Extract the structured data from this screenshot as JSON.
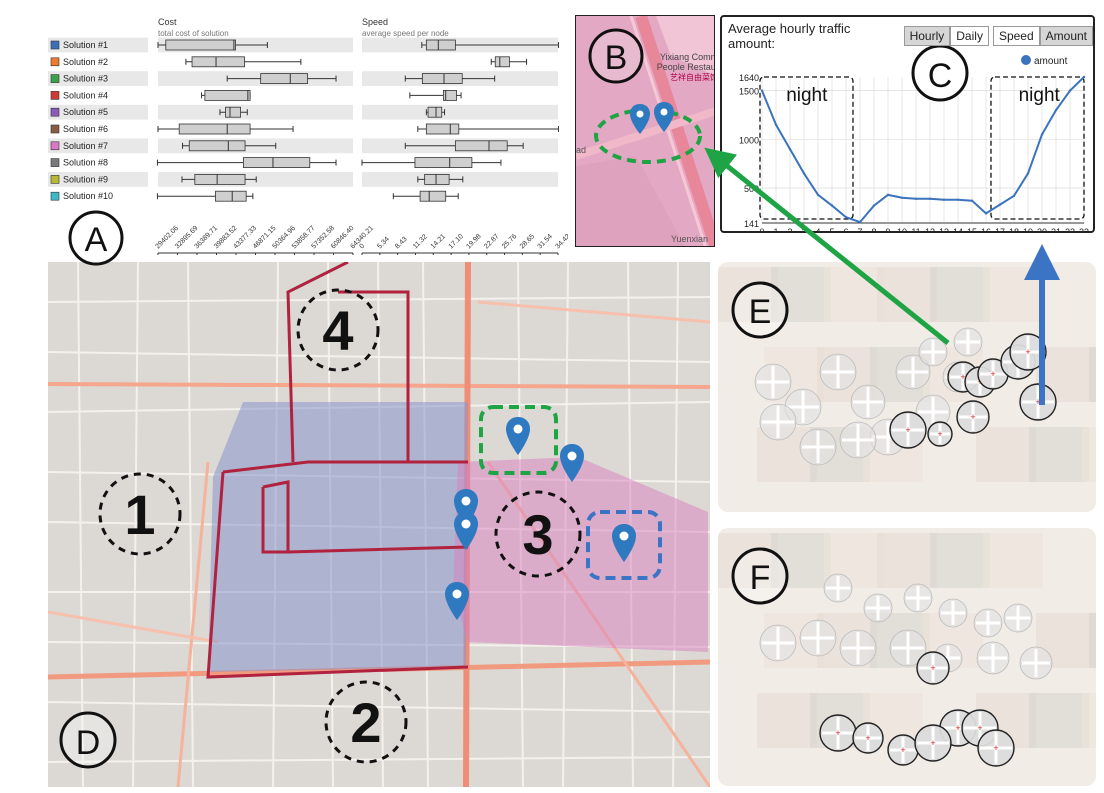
{
  "panel_labels": {
    "a": "A",
    "b": "B",
    "c": "C",
    "d": "D",
    "e": "E",
    "f": "F"
  },
  "panel_a": {
    "cost_title": "Cost",
    "cost_subtitle": "total cost of solution",
    "speed_title": "Speed",
    "speed_subtitle": "average speed per node",
    "solutions": [
      "Solution #1",
      "Solution #2",
      "Solution #3",
      "Solution #4",
      "Solution #5",
      "Solution #6",
      "Solution #7",
      "Solution #8",
      "Solution #9",
      "Solution #10"
    ],
    "solution_colors": [
      "#3d6fb8",
      "#ee7a2e",
      "#3aa34a",
      "#cc3a33",
      "#8a5bb8",
      "#8b5a43",
      "#d879c3",
      "#7a7a7a",
      "#b8b833",
      "#3db8c8"
    ],
    "cost_ticks": [
      "29402.06",
      "32895.69",
      "36389.71",
      "39883.52",
      "43377.33",
      "46871.15",
      "50364.96",
      "53858.77",
      "57352.58",
      "60846.40",
      "64340.21"
    ],
    "speed_ticks": [
      "0",
      "5.34",
      "8.43",
      "11.32",
      "14.21",
      "17.10",
      "19.98",
      "22.87",
      "25.76",
      "28.65",
      "31.54",
      "34.42"
    ],
    "cost_boxes": [
      {
        "whisker_low": 29402,
        "q1": 30800,
        "median": 43000,
        "q3": 43300,
        "whisker_high": 49000
      },
      {
        "whisker_low": 34400,
        "q1": 35500,
        "median": 39800,
        "q3": 44900,
        "whisker_high": 55000
      },
      {
        "whisker_low": 41800,
        "q1": 47800,
        "median": 53100,
        "q3": 56200,
        "whisker_high": 61300
      },
      {
        "whisker_low": 37200,
        "q1": 37800,
        "median": 45500,
        "q3": 45900,
        "whisker_high": 45900
      },
      {
        "whisker_low": 40500,
        "q1": 41500,
        "median": 42300,
        "q3": 44200,
        "whisker_high": 45400
      },
      {
        "whisker_low": 29400,
        "q1": 33200,
        "median": 41800,
        "q3": 45900,
        "whisker_high": 53600
      },
      {
        "whisker_low": 33800,
        "q1": 35000,
        "median": 42000,
        "q3": 45000,
        "whisker_high": 50500
      },
      {
        "whisker_low": 29300,
        "q1": 44700,
        "median": 50000,
        "q3": 56600,
        "whisker_high": 61300
      },
      {
        "whisker_low": 33700,
        "q1": 36000,
        "median": 40000,
        "q3": 45000,
        "whisker_high": 47000
      },
      {
        "whisker_low": 29300,
        "q1": 39700,
        "median": 42700,
        "q3": 45200,
        "whisker_high": 46400
      }
    ],
    "speed_boxes": [
      {
        "whisker_low": 10500,
        "q1": 11300,
        "median": 13400,
        "q3": 16400,
        "whisker_high": 34500
      },
      {
        "whisker_low": 22700,
        "q1": 23400,
        "median": 24200,
        "q3": 25900,
        "whisker_high": 28900
      },
      {
        "whisker_low": 7600,
        "q1": 10600,
        "median": 14400,
        "q3": 17600,
        "whisker_high": 23300
      },
      {
        "whisker_low": 8400,
        "q1": 14300,
        "median": 14700,
        "q3": 16600,
        "whisker_high": 17400
      },
      {
        "whisker_low": 11300,
        "q1": 11600,
        "median": 13000,
        "q3": 14000,
        "whisker_high": 14500
      },
      {
        "whisker_low": 9800,
        "q1": 11300,
        "median": 15500,
        "q3": 17000,
        "whisker_high": 34500
      },
      {
        "whisker_low": 7600,
        "q1": 16400,
        "median": 22300,
        "q3": 25500,
        "whisker_high": 28300
      },
      {
        "whisker_low": 0,
        "q1": 9300,
        "median": 15400,
        "q3": 19300,
        "whisker_high": 24400
      },
      {
        "whisker_low": 9800,
        "q1": 11000,
        "median": 13000,
        "q3": 15300,
        "whisker_high": 17700
      },
      {
        "whisker_low": 5500,
        "q1": 10200,
        "median": 11800,
        "q3": 14700,
        "whisker_high": 16900
      }
    ]
  },
  "panel_b": {
    "poi_line1": "Yixiang Common",
    "poi_line2": "People Restaurant",
    "poi_line3": "艺祥自由菜馆",
    "road_label": "Yuenxian",
    "side_label": "ad"
  },
  "panel_c": {
    "title": "Average hourly traffic amount:",
    "btn_hourly": "Hourly",
    "btn_daily": "Daily",
    "btn_speed": "Speed",
    "btn_amount": "Amount",
    "legend": "amount",
    "night_label": "night",
    "y_ticks": [
      "1640",
      "1500",
      "1000",
      "500",
      "141"
    ],
    "x_ticks": [
      "0",
      "1",
      "2",
      "3",
      "4",
      "5",
      "6",
      "7",
      "8",
      "9",
      "10",
      "11",
      "12",
      "13",
      "14",
      "15",
      "16",
      "17",
      "18",
      "19",
      "20",
      "21",
      "22",
      "23"
    ]
  },
  "chart_data": {
    "type": "line",
    "title": "Average hourly traffic amount:",
    "x": [
      0,
      1,
      2,
      3,
      4,
      5,
      6,
      7,
      8,
      9,
      10,
      11,
      12,
      13,
      14,
      15,
      16,
      17,
      18,
      19,
      20,
      21,
      22,
      23
    ],
    "series": [
      {
        "name": "amount",
        "values": [
          1500,
          1150,
          900,
          650,
          430,
          320,
          200,
          150,
          320,
          430,
          400,
          390,
          390,
          380,
          380,
          370,
          240,
          330,
          420,
          650,
          1050,
          1300,
          1500,
          1640
        ]
      }
    ],
    "yticks": [
      141,
      500,
      1000,
      1500,
      1640
    ],
    "ylim": [
      141,
      1640
    ],
    "xlim": [
      0,
      23
    ]
  },
  "panel_d": {
    "regions": [
      "1",
      "2",
      "3",
      "4"
    ]
  },
  "colors": {
    "green_dashed": "#1fa445",
    "blue_dashed": "#3b74c4",
    "pin": "#2f79c0",
    "night_box": "#111111",
    "line": "#3b73bd"
  }
}
